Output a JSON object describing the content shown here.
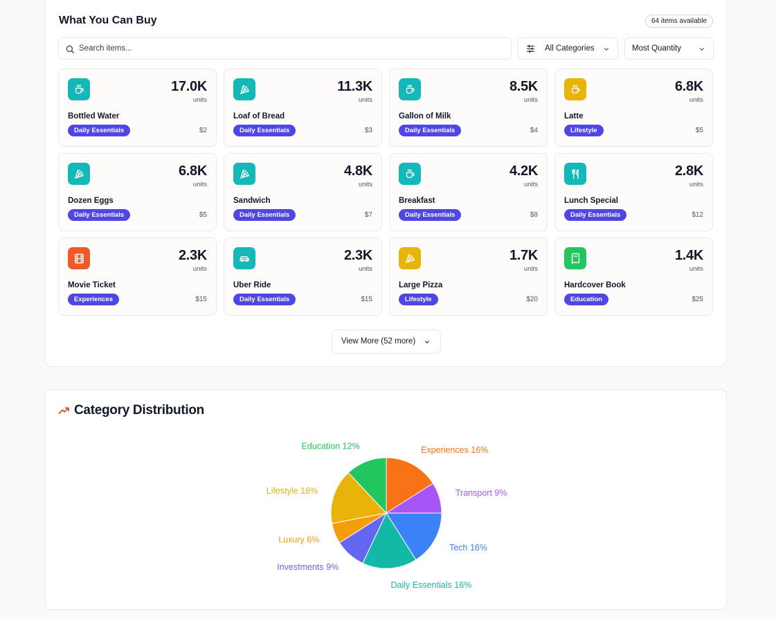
{
  "buy": {
    "title": "What You Can Buy",
    "items_available": "64 items available",
    "search_placeholder": "Search items...",
    "category_filter": "All Categories",
    "sort": "Most Quantity",
    "view_more": "View More (52 more)",
    "items": [
      {
        "name": "Bottled Water",
        "qty": "17.0K",
        "unit": "units",
        "category": "Daily Essentials",
        "price": "$2",
        "icon": "coffee-cup-icon",
        "color": "#14b8b8"
      },
      {
        "name": "Loaf of Bread",
        "qty": "11.3K",
        "unit": "units",
        "category": "Daily Essentials",
        "price": "$3",
        "icon": "pizza-slice-icon",
        "color": "#14b8b8"
      },
      {
        "name": "Gallon of Milk",
        "qty": "8.5K",
        "unit": "units",
        "category": "Daily Essentials",
        "price": "$4",
        "icon": "coffee-cup-icon",
        "color": "#14b8b8"
      },
      {
        "name": "Latte",
        "qty": "6.8K",
        "unit": "units",
        "category": "Lifestyle",
        "price": "$5",
        "icon": "coffee-cup-icon",
        "color": "#eab308"
      },
      {
        "name": "Dozen Eggs",
        "qty": "6.8K",
        "unit": "units",
        "category": "Daily Essentials",
        "price": "$5",
        "icon": "pizza-slice-icon",
        "color": "#14b8b8"
      },
      {
        "name": "Sandwich",
        "qty": "4.8K",
        "unit": "units",
        "category": "Daily Essentials",
        "price": "$7",
        "icon": "pizza-slice-icon",
        "color": "#14b8b8"
      },
      {
        "name": "Breakfast",
        "qty": "4.2K",
        "unit": "units",
        "category": "Daily Essentials",
        "price": "$8",
        "icon": "coffee-cup-icon",
        "color": "#14b8b8"
      },
      {
        "name": "Lunch Special",
        "qty": "2.8K",
        "unit": "units",
        "category": "Daily Essentials",
        "price": "$12",
        "icon": "utensils-icon",
        "color": "#14b8b8"
      },
      {
        "name": "Movie Ticket",
        "qty": "2.3K",
        "unit": "units",
        "category": "Experiences",
        "price": "$15",
        "icon": "film-icon",
        "color": "#f0592a"
      },
      {
        "name": "Uber Ride",
        "qty": "2.3K",
        "unit": "units",
        "category": "Daily Essentials",
        "price": "$15",
        "icon": "car-icon",
        "color": "#14b8b8"
      },
      {
        "name": "Large Pizza",
        "qty": "1.7K",
        "unit": "units",
        "category": "Lifestyle",
        "price": "$20",
        "icon": "pizza-slice-icon",
        "color": "#eab308"
      },
      {
        "name": "Hardcover Book",
        "qty": "1.4K",
        "unit": "units",
        "category": "Education",
        "price": "$25",
        "icon": "book-icon",
        "color": "#22c55e"
      }
    ]
  },
  "distribution": {
    "title": "Category Distribution",
    "icon": "trending-up-icon",
    "accent": "#c2410c"
  },
  "chart_data": {
    "type": "pie",
    "title": "Category Distribution",
    "slices": [
      {
        "label": "Tech",
        "value": 16,
        "color": "#3b82f6"
      },
      {
        "label": "Daily Essentials",
        "value": 16,
        "color": "#14b8a6"
      },
      {
        "label": "Investments",
        "value": 9,
        "color": "#6366f1"
      },
      {
        "label": "Luxury",
        "value": 6,
        "color": "#f59e0b"
      },
      {
        "label": "Lifestyle",
        "value": 16,
        "color": "#eab308"
      },
      {
        "label": "Education",
        "value": 12,
        "color": "#22c55e"
      },
      {
        "label": "Experiences",
        "value": 16,
        "color": "#f97316"
      },
      {
        "label": "Transport",
        "value": 9,
        "color": "#a855f7"
      }
    ],
    "label_format": "{label} {value}%"
  }
}
